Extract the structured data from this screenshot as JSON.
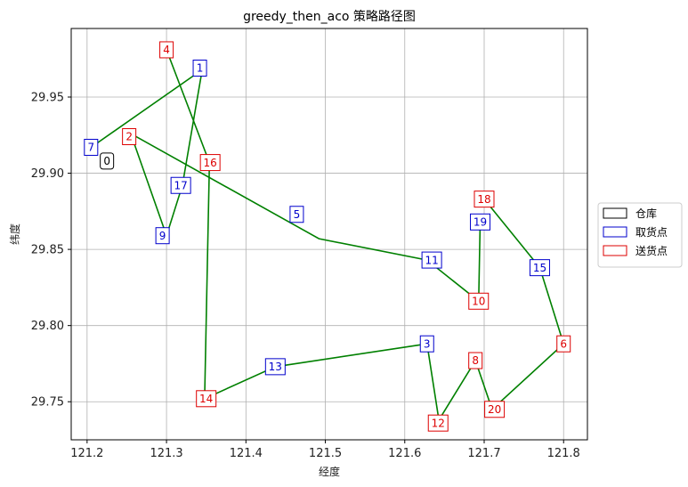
{
  "chart_data": {
    "type": "scatter",
    "title": "greedy_then_aco 策略路径图",
    "xlabel": "经度",
    "ylabel": "纬度",
    "xlim": [
      121.18,
      121.83
    ],
    "ylim": [
      29.725,
      29.995
    ],
    "xticks": [
      121.2,
      121.3,
      121.4,
      121.5,
      121.6,
      121.7,
      121.8
    ],
    "yticks": [
      29.75,
      29.8,
      29.85,
      29.9,
      29.95
    ],
    "xtick_labels": [
      "121.2",
      "121.3",
      "121.4",
      "121.5",
      "121.6",
      "121.7",
      "121.8"
    ],
    "ytick_labels": [
      "29.75",
      "29.80",
      "29.85",
      "29.90",
      "29.95"
    ],
    "grid": true,
    "legend_position": "right",
    "legend": [
      {
        "label": "仓库",
        "color": "#000000"
      },
      {
        "label": "取货点",
        "color": "#0000cc"
      },
      {
        "label": "送货点",
        "color": "#dd0000"
      }
    ],
    "route_color": "#008000",
    "nodes": [
      {
        "id": "0",
        "kind": "depot",
        "x": 121.225,
        "y": 29.908
      },
      {
        "id": "1",
        "kind": "pickup",
        "x": 121.342,
        "y": 29.969
      },
      {
        "id": "2",
        "kind": "delivery",
        "x": 121.253,
        "y": 29.924
      },
      {
        "id": "3",
        "kind": "pickup",
        "x": 121.628,
        "y": 29.788
      },
      {
        "id": "4",
        "kind": "delivery",
        "x": 121.3,
        "y": 29.981
      },
      {
        "id": "5",
        "kind": "pickup",
        "x": 121.464,
        "y": 29.873
      },
      {
        "id": "6",
        "kind": "delivery",
        "x": 121.8,
        "y": 29.788
      },
      {
        "id": "7",
        "kind": "pickup",
        "x": 121.205,
        "y": 29.917
      },
      {
        "id": "8",
        "kind": "delivery",
        "x": 121.689,
        "y": 29.777
      },
      {
        "id": "9",
        "kind": "pickup",
        "x": 121.295,
        "y": 29.859
      },
      {
        "id": "10",
        "kind": "delivery",
        "x": 121.693,
        "y": 29.816
      },
      {
        "id": "11",
        "kind": "pickup",
        "x": 121.634,
        "y": 29.843
      },
      {
        "id": "12",
        "kind": "delivery",
        "x": 121.642,
        "y": 29.736
      },
      {
        "id": "13",
        "kind": "pickup",
        "x": 121.437,
        "y": 29.773
      },
      {
        "id": "14",
        "kind": "delivery",
        "x": 121.35,
        "y": 29.752
      },
      {
        "id": "15",
        "kind": "pickup",
        "x": 121.77,
        "y": 29.838
      },
      {
        "id": "16",
        "kind": "delivery",
        "x": 121.355,
        "y": 29.907
      },
      {
        "id": "17",
        "kind": "pickup",
        "x": 121.318,
        "y": 29.892
      },
      {
        "id": "18",
        "kind": "delivery",
        "x": 121.7,
        "y": 29.883
      },
      {
        "id": "19",
        "kind": "pickup",
        "x": 121.695,
        "y": 29.868
      },
      {
        "id": "20",
        "kind": "delivery",
        "x": 121.713,
        "y": 29.745
      }
    ],
    "route": [
      [
        [
          121.205,
          29.917
        ],
        [
          121.345,
          29.968
        ],
        [
          121.32,
          29.892
        ],
        [
          121.3,
          29.859
        ],
        [
          121.255,
          29.926
        ],
        [
          121.492,
          29.857
        ],
        [
          121.628,
          29.843
        ],
        [
          121.693,
          29.816
        ],
        [
          121.695,
          29.868
        ]
      ],
      [
        [
          121.3,
          29.981
        ],
        [
          121.354,
          29.907
        ],
        [
          121.348,
          29.752
        ],
        [
          121.437,
          29.773
        ],
        [
          121.628,
          29.788
        ],
        [
          121.643,
          29.738
        ],
        [
          121.689,
          29.777
        ],
        [
          121.71,
          29.745
        ],
        [
          121.8,
          29.788
        ],
        [
          121.77,
          29.838
        ],
        [
          121.7,
          29.883
        ]
      ]
    ]
  }
}
